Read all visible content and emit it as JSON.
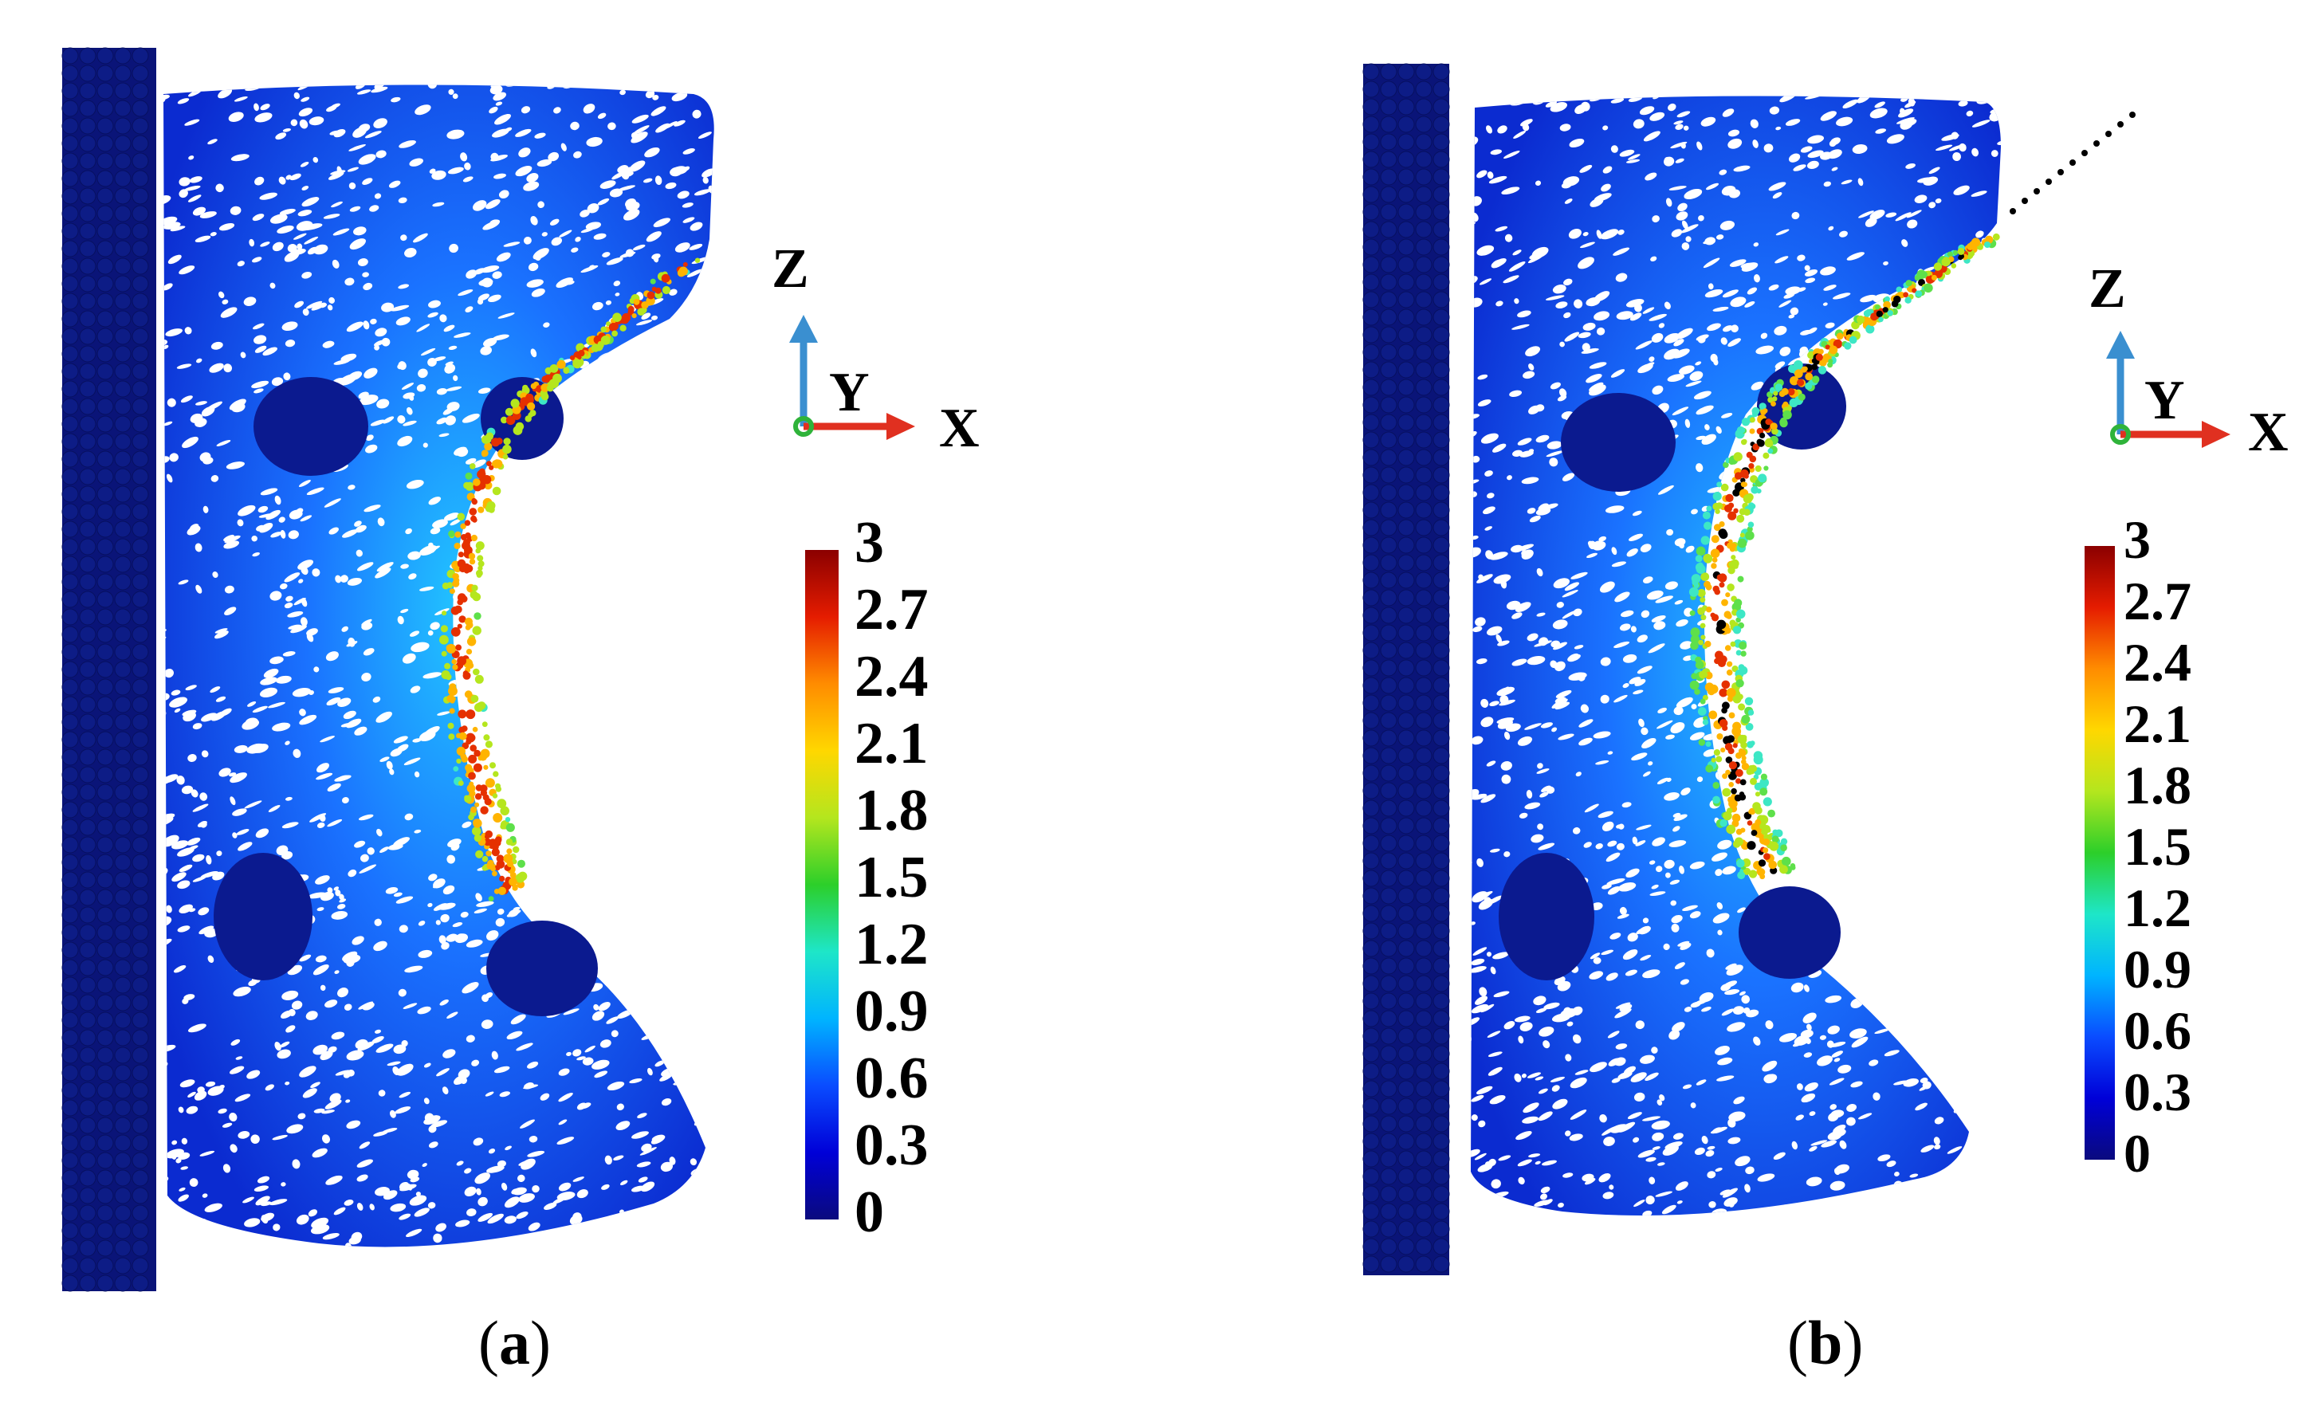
{
  "colormap": {
    "stops": [
      "#0a0a7e",
      "#0000d8",
      "#0a4cff",
      "#00b4ff",
      "#1ee6c8",
      "#2ccf2a",
      "#b4e61e",
      "#ffd700",
      "#ff8c00",
      "#e51c00",
      "#8b0000"
    ],
    "cloud_colors": [
      "#0b1a8f",
      "#0b2ee0",
      "#1a5cff",
      "#1f8bff",
      "#22c7ff",
      "#3de7c5",
      "#5ee04a",
      "#b5e61e",
      "#ffb400",
      "#e53000",
      "#000000"
    ]
  },
  "wall_color": "#0a1478",
  "triad": {
    "z": "Z",
    "y": "Y",
    "x": "X",
    "z_color": "#3a8fd0",
    "x_color": "#e03020",
    "y_color": "#2fb33a"
  },
  "panels": [
    {
      "id": "a",
      "caption_open": "(",
      "caption_letter": "a",
      "caption_close": ")",
      "colorbar_ticks": [
        "3",
        "2.7",
        "2.4",
        "2.1",
        "1.8",
        "1.5",
        "1.2",
        "0.9",
        "0.6",
        "0.3",
        "0"
      ]
    },
    {
      "id": "b",
      "caption_open": "(",
      "caption_letter": "b",
      "caption_close": ")",
      "colorbar_ticks": [
        "3",
        "2.7",
        "2.4",
        "2.1",
        "1.8",
        "1.5",
        "1.2",
        "0.9",
        "0.6",
        "0.3",
        "0"
      ]
    }
  ]
}
